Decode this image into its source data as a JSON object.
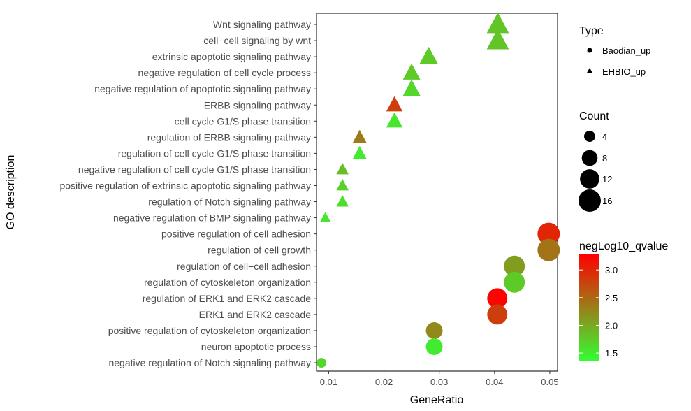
{
  "chart_data": {
    "type": "scatter",
    "xlabel": "GeneRatio",
    "ylabel": "GO description",
    "xlim": [
      0.0078,
      0.0514
    ],
    "x_ticks": [
      0.01,
      0.02,
      0.03,
      0.04,
      0.05
    ],
    "x_tick_labels": [
      "0.01",
      "0.02",
      "0.03",
      "0.04",
      "0.05"
    ],
    "grid": false,
    "categories": [
      "Wnt signaling pathway",
      "cell−cell signaling by wnt",
      "extrinsic apoptotic signaling pathway",
      "negative regulation of cell cycle process",
      "negative regulation of apoptotic signaling pathway",
      "ERBB signaling pathway",
      "cell cycle G1/S phase transition",
      "regulation of ERBB signaling pathway",
      "regulation of cell cycle G1/S phase transition",
      "negative regulation of cell cycle G1/S phase transition",
      "positive regulation of extrinsic apoptotic signaling pathway",
      "regulation of Notch signaling pathway",
      "negative regulation of BMP signaling pathway",
      "positive regulation of cell adhesion",
      "regulation of cell growth",
      "regulation of cell−cell adhesion",
      "regulation of cytoskeleton organization",
      "regulation of ERK1 and ERK2 cascade",
      "ERK1 and ERK2 cascade",
      "positive regulation of cytoskeleton organization",
      "neuron apoptotic process",
      "negative regulation of Notch signaling pathway"
    ],
    "points": [
      {
        "term": "Wnt signaling pathway",
        "gene_ratio": 0.0406,
        "count": 13,
        "neglog10_qvalue": 1.8,
        "type": "EHBIO_up"
      },
      {
        "term": "cell−cell signaling by wnt",
        "gene_ratio": 0.0406,
        "count": 13,
        "neglog10_qvalue": 1.8,
        "type": "EHBIO_up"
      },
      {
        "term": "extrinsic apoptotic signaling pathway",
        "gene_ratio": 0.0281,
        "count": 9,
        "neglog10_qvalue": 1.75,
        "type": "EHBIO_up"
      },
      {
        "term": "negative regulation of cell cycle process",
        "gene_ratio": 0.025,
        "count": 8,
        "neglog10_qvalue": 1.75,
        "type": "EHBIO_up"
      },
      {
        "term": "negative regulation of apoptotic signaling pathway",
        "gene_ratio": 0.025,
        "count": 8,
        "neglog10_qvalue": 1.65,
        "type": "EHBIO_up"
      },
      {
        "term": "ERBB signaling pathway",
        "gene_ratio": 0.0219,
        "count": 7,
        "neglog10_qvalue": 2.8,
        "type": "EHBIO_up"
      },
      {
        "term": "cell cycle G1/S phase transition",
        "gene_ratio": 0.0219,
        "count": 7,
        "neglog10_qvalue": 1.55,
        "type": "EHBIO_up"
      },
      {
        "term": "regulation of ERBB signaling pathway",
        "gene_ratio": 0.0156,
        "count": 5,
        "neglog10_qvalue": 2.35,
        "type": "EHBIO_up"
      },
      {
        "term": "regulation of cell cycle G1/S phase transition",
        "gene_ratio": 0.0156,
        "count": 5,
        "neglog10_qvalue": 1.5,
        "type": "EHBIO_up"
      },
      {
        "term": "negative regulation of cell cycle G1/S phase transition",
        "gene_ratio": 0.0125,
        "count": 4,
        "neglog10_qvalue": 1.85,
        "type": "EHBIO_up"
      },
      {
        "term": "positive regulation of extrinsic apoptotic signaling pathway",
        "gene_ratio": 0.0125,
        "count": 4,
        "neglog10_qvalue": 1.7,
        "type": "EHBIO_up"
      },
      {
        "term": "regulation of Notch signaling pathway",
        "gene_ratio": 0.0125,
        "count": 4,
        "neglog10_qvalue": 1.6,
        "type": "EHBIO_up"
      },
      {
        "term": "negative regulation of BMP signaling pathway",
        "gene_ratio": 0.0094,
        "count": 3,
        "neglog10_qvalue": 1.55,
        "type": "EHBIO_up"
      },
      {
        "term": "positive regulation of cell adhesion",
        "gene_ratio": 0.0498,
        "count": 16,
        "neglog10_qvalue": 3.0,
        "type": "Baodian_up"
      },
      {
        "term": "regulation of cell growth",
        "gene_ratio": 0.0498,
        "count": 16,
        "neglog10_qvalue": 2.4,
        "type": "Baodian_up"
      },
      {
        "term": "regulation of cell−cell adhesion",
        "gene_ratio": 0.0436,
        "count": 14,
        "neglog10_qvalue": 2.1,
        "type": "Baodian_up"
      },
      {
        "term": "regulation of cytoskeleton organization",
        "gene_ratio": 0.0436,
        "count": 14,
        "neglog10_qvalue": 1.75,
        "type": "Baodian_up"
      },
      {
        "term": "regulation of ERK1 and ERK2 cascade",
        "gene_ratio": 0.0405,
        "count": 13,
        "neglog10_qvalue": 3.25,
        "type": "Baodian_up"
      },
      {
        "term": "ERK1 and ERK2 cascade",
        "gene_ratio": 0.0405,
        "count": 13,
        "neglog10_qvalue": 2.8,
        "type": "Baodian_up"
      },
      {
        "term": "positive regulation of cytoskeleton organization",
        "gene_ratio": 0.0291,
        "count": 9,
        "neglog10_qvalue": 2.25,
        "type": "Baodian_up"
      },
      {
        "term": "neuron apoptotic process",
        "gene_ratio": 0.0291,
        "count": 9,
        "neglog10_qvalue": 1.5,
        "type": "Baodian_up"
      },
      {
        "term": "negative regulation of Notch signaling pathway",
        "gene_ratio": 0.0087,
        "count": 3,
        "neglog10_qvalue": 1.65,
        "type": "Baodian_up"
      }
    ],
    "legends": {
      "position": "right",
      "type": {
        "title": "Type",
        "items": [
          {
            "label": "Baodian_up",
            "shape": "circle"
          },
          {
            "label": "EHBIO_up",
            "shape": "triangle"
          }
        ]
      },
      "count": {
        "title": "Count",
        "values": [
          4,
          8,
          12,
          16
        ],
        "labels": [
          "4",
          "8",
          "12",
          "16"
        ]
      },
      "color": {
        "title": "negLog10_qvalue",
        "range": [
          1.35,
          3.28
        ],
        "ticks": [
          1.5,
          2.0,
          2.5,
          3.0
        ],
        "tick_labels": [
          "1.5",
          "2.0",
          "2.5",
          "3.0"
        ],
        "low_color": "#33ff33",
        "high_color": "#ff0000"
      }
    }
  }
}
